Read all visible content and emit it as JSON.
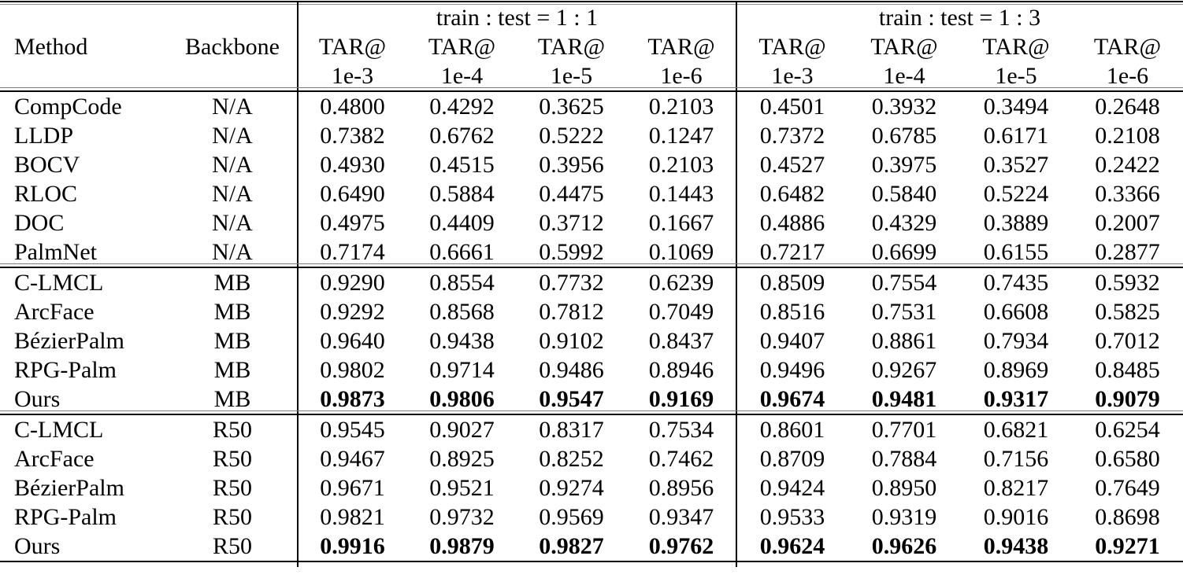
{
  "table": {
    "group_titles": [
      "train : test = 1 : 1",
      "train : test = 1 : 3"
    ],
    "method_header": "Method",
    "backbone_header": "Backbone",
    "metric_label": "TAR@",
    "thresholds": [
      "1e-3",
      "1e-4",
      "1e-5",
      "1e-6"
    ],
    "rows": [
      {
        "method": "CompCode",
        "backbone": "N/A",
        "values_1_1": [
          "0.4800",
          "0.4292",
          "0.3625",
          "0.2103"
        ],
        "values_1_3": [
          "0.4501",
          "0.3932",
          "0.3494",
          "0.2648"
        ],
        "bold_values": false,
        "section_start": false
      },
      {
        "method": "LLDP",
        "backbone": "N/A",
        "values_1_1": [
          "0.7382",
          "0.6762",
          "0.5222",
          "0.1247"
        ],
        "values_1_3": [
          "0.7372",
          "0.6785",
          "0.6171",
          "0.2108"
        ],
        "bold_values": false,
        "section_start": false
      },
      {
        "method": "BOCV",
        "backbone": "N/A",
        "values_1_1": [
          "0.4930",
          "0.4515",
          "0.3956",
          "0.2103"
        ],
        "values_1_3": [
          "0.4527",
          "0.3975",
          "0.3527",
          "0.2422"
        ],
        "bold_values": false,
        "section_start": false
      },
      {
        "method": "RLOC",
        "backbone": "N/A",
        "values_1_1": [
          "0.6490",
          "0.5884",
          "0.4475",
          "0.1443"
        ],
        "values_1_3": [
          "0.6482",
          "0.5840",
          "0.5224",
          "0.3366"
        ],
        "bold_values": false,
        "section_start": false
      },
      {
        "method": "DOC",
        "backbone": "N/A",
        "values_1_1": [
          "0.4975",
          "0.4409",
          "0.3712",
          "0.1667"
        ],
        "values_1_3": [
          "0.4886",
          "0.4329",
          "0.3889",
          "0.2007"
        ],
        "bold_values": false,
        "section_start": false
      },
      {
        "method": "PalmNet",
        "backbone": "N/A",
        "values_1_1": [
          "0.7174",
          "0.6661",
          "0.5992",
          "0.1069"
        ],
        "values_1_3": [
          "0.7217",
          "0.6699",
          "0.6155",
          "0.2877"
        ],
        "bold_values": false,
        "section_start": false
      },
      {
        "method": "C-LMCL",
        "backbone": "MB",
        "values_1_1": [
          "0.9290",
          "0.8554",
          "0.7732",
          "0.6239"
        ],
        "values_1_3": [
          "0.8509",
          "0.7554",
          "0.7435",
          "0.5932"
        ],
        "bold_values": false,
        "section_start": true
      },
      {
        "method": "ArcFace",
        "backbone": "MB",
        "values_1_1": [
          "0.9292",
          "0.8568",
          "0.7812",
          "0.7049"
        ],
        "values_1_3": [
          "0.8516",
          "0.7531",
          "0.6608",
          "0.5825"
        ],
        "bold_values": false,
        "section_start": false
      },
      {
        "method": "BézierPalm",
        "backbone": "MB",
        "values_1_1": [
          "0.9640",
          "0.9438",
          "0.9102",
          "0.8437"
        ],
        "values_1_3": [
          "0.9407",
          "0.8861",
          "0.7934",
          "0.7012"
        ],
        "bold_values": false,
        "section_start": false
      },
      {
        "method": "RPG-Palm",
        "backbone": "MB",
        "values_1_1": [
          "0.9802",
          "0.9714",
          "0.9486",
          "0.8946"
        ],
        "values_1_3": [
          "0.9496",
          "0.9267",
          "0.8969",
          "0.8485"
        ],
        "bold_values": false,
        "section_start": false
      },
      {
        "method": "Ours",
        "backbone": "MB",
        "values_1_1": [
          "0.9873",
          "0.9806",
          "0.9547",
          "0.9169"
        ],
        "values_1_3": [
          "0.9674",
          "0.9481",
          "0.9317",
          "0.9079"
        ],
        "bold_values": true,
        "section_start": false
      },
      {
        "method": "C-LMCL",
        "backbone": "R50",
        "values_1_1": [
          "0.9545",
          "0.9027",
          "0.8317",
          "0.7534"
        ],
        "values_1_3": [
          "0.8601",
          "0.7701",
          "0.6821",
          "0.6254"
        ],
        "bold_values": false,
        "section_start": true
      },
      {
        "method": "ArcFace",
        "backbone": "R50",
        "values_1_1": [
          "0.9467",
          "0.8925",
          "0.8252",
          "0.7462"
        ],
        "values_1_3": [
          "0.8709",
          "0.7884",
          "0.7156",
          "0.6580"
        ],
        "bold_values": false,
        "section_start": false
      },
      {
        "method": "BézierPalm",
        "backbone": "R50",
        "values_1_1": [
          "0.9671",
          "0.9521",
          "0.9274",
          "0.8956"
        ],
        "values_1_3": [
          "0.9424",
          "0.8950",
          "0.8217",
          "0.7649"
        ],
        "bold_values": false,
        "section_start": false
      },
      {
        "method": "RPG-Palm",
        "backbone": "R50",
        "values_1_1": [
          "0.9821",
          "0.9732",
          "0.9569",
          "0.9347"
        ],
        "values_1_3": [
          "0.9533",
          "0.9319",
          "0.9016",
          "0.8698"
        ],
        "bold_values": false,
        "section_start": false
      },
      {
        "method": "Ours",
        "backbone": "R50",
        "values_1_1": [
          "0.9916",
          "0.9879",
          "0.9827",
          "0.9762"
        ],
        "values_1_3": [
          "0.9624",
          "0.9626",
          "0.9438",
          "0.9271"
        ],
        "bold_values": true,
        "section_start": false
      }
    ]
  }
}
